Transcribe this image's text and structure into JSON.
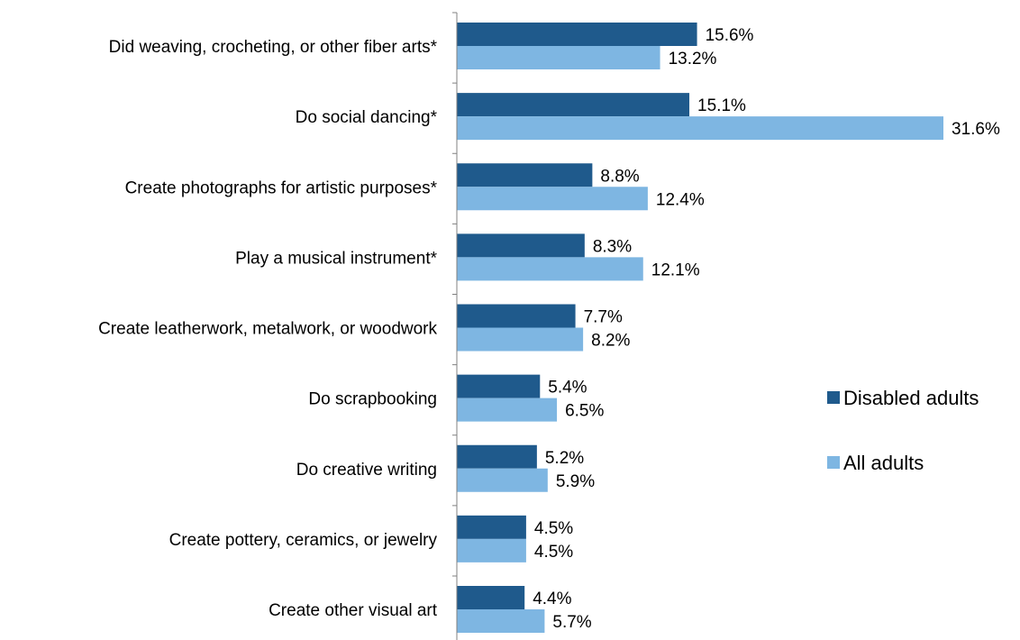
{
  "chart_data": {
    "type": "bar",
    "orientation": "horizontal",
    "title": "",
    "xlabel": "",
    "ylabel": "",
    "categories": [
      "Did weaving, crocheting, or other fiber arts*",
      "Do social dancing*",
      "Create photographs for artistic purposes*",
      "Play a musical instrument*",
      "Create leatherwork, metalwork, or woodwork",
      "Do scrapbooking",
      "Do creative writing",
      "Create pottery, ceramics, or jewelry",
      "Create other visual art"
    ],
    "series": [
      {
        "name": "Disabled adults",
        "color": "#1f5a8c",
        "values": [
          15.6,
          15.1,
          8.8,
          8.3,
          7.7,
          5.4,
          5.2,
          4.5,
          4.4
        ],
        "labels": [
          "15.6%",
          "15.1%",
          "8.8%",
          "8.3%",
          "7.7%",
          "5.4%",
          "5.2%",
          "4.5%",
          "4.4%"
        ]
      },
      {
        "name": "All adults",
        "color": "#7eb6e2",
        "values": [
          13.2,
          31.6,
          12.4,
          12.1,
          8.2,
          6.5,
          5.9,
          4.5,
          5.7
        ],
        "labels": [
          "13.2%",
          "31.6%",
          "12.4%",
          "12.1%",
          "8.2%",
          "6.5%",
          "5.9%",
          "4.5%",
          "5.7%"
        ]
      }
    ],
    "xlim": [
      0,
      31.6
    ],
    "grid": false,
    "legend": "right"
  }
}
